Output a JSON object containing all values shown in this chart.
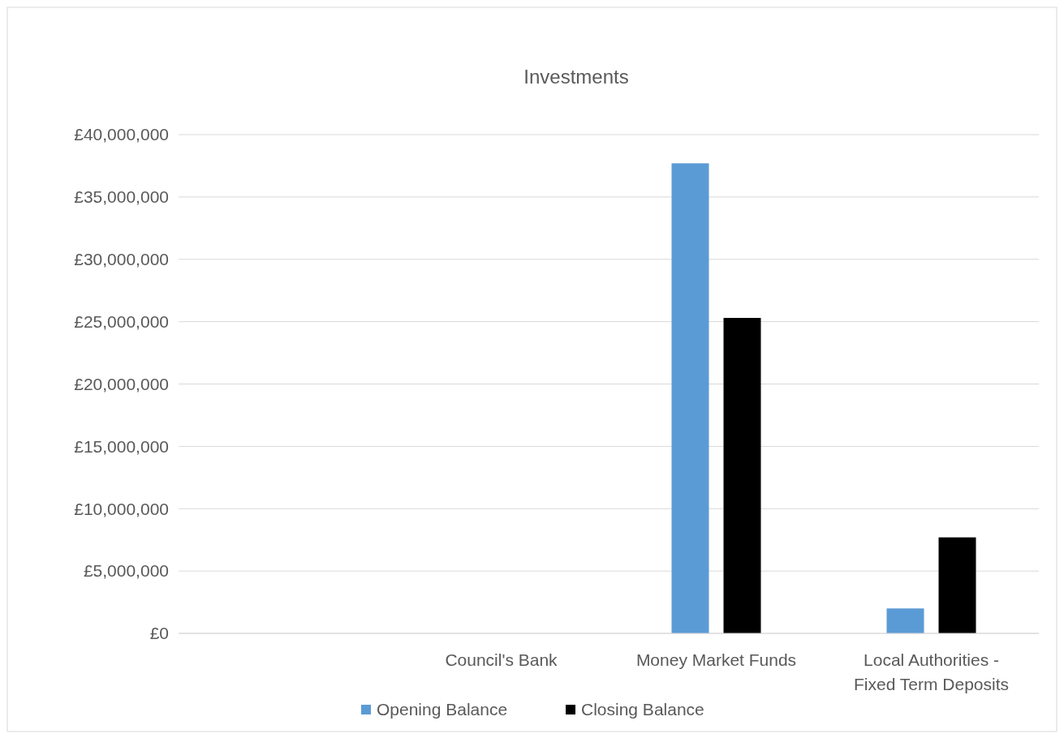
{
  "chart_data": {
    "type": "bar",
    "title": "Investments",
    "categories": [
      null,
      "Council's Bank",
      "Money Market Funds",
      "Local Authorities - Fixed Term Deposits"
    ],
    "series": [
      {
        "name": "Opening Balance",
        "color": "#5b9bd5",
        "values": [
          null,
          null,
          37700000,
          2000000
        ]
      },
      {
        "name": "Closing Balance",
        "color": "#000000",
        "values": [
          null,
          null,
          25300000,
          7700000
        ]
      }
    ],
    "ylim": [
      0,
      40000000
    ],
    "yticks": [
      {
        "value": 0,
        "label": "£0"
      },
      {
        "value": 5000000,
        "label": "£5,000,000"
      },
      {
        "value": 10000000,
        "label": "£10,000,000"
      },
      {
        "value": 15000000,
        "label": "£15,000,000"
      },
      {
        "value": 20000000,
        "label": "£20,000,000"
      },
      {
        "value": 25000000,
        "label": "£25,000,000"
      },
      {
        "value": 30000000,
        "label": "£30,000,000"
      },
      {
        "value": 35000000,
        "label": "£35,000,000"
      },
      {
        "value": 40000000,
        "label": "£40,000,000"
      }
    ],
    "grid": "y",
    "legend": "bottom"
  }
}
